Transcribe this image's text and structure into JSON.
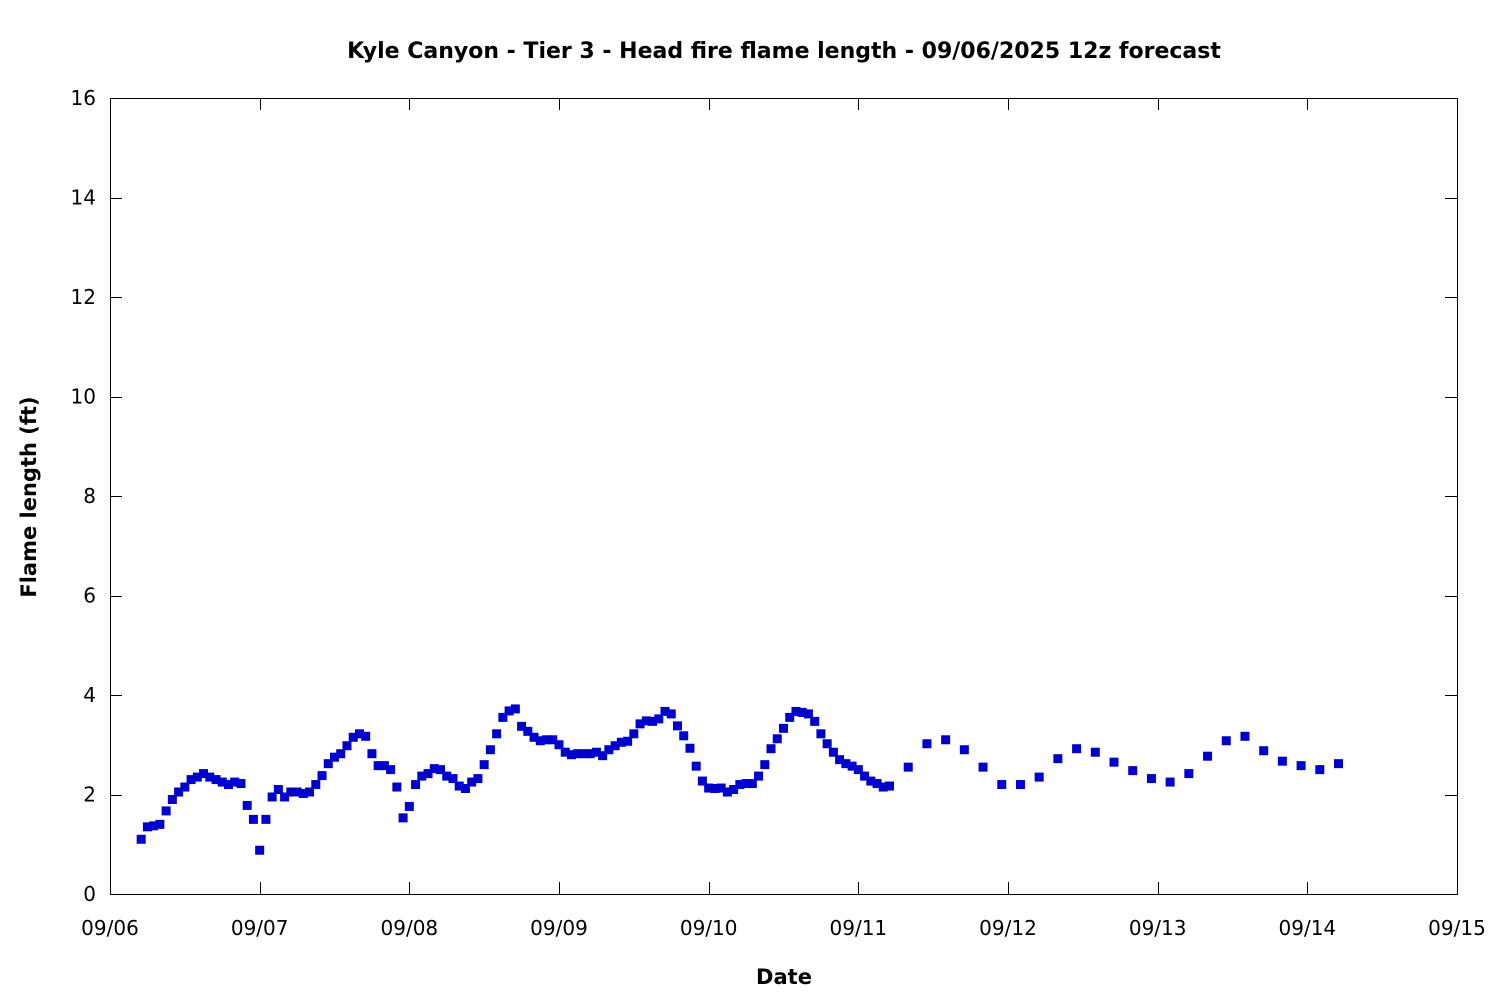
{
  "chart_data": {
    "type": "scatter",
    "title": "Kyle Canyon - Tier 3 - Head fire flame length - 09/06/2025 12z forecast",
    "xlabel": "Date",
    "ylabel": "Flame length (ft)",
    "ylim": [
      0,
      16
    ],
    "y_ticks": [
      0,
      2,
      4,
      6,
      8,
      10,
      12,
      14,
      16
    ],
    "xlim": [
      "09/06",
      "09/15"
    ],
    "x_ticks": [
      "09/06",
      "09/07",
      "09/08",
      "09/09",
      "09/10",
      "09/11",
      "09/12",
      "09/13",
      "09/14",
      "09/15"
    ],
    "grid": false,
    "legend": "none",
    "marker_color": "#0000cc",
    "marker": "square",
    "series": [
      {
        "points": [
          [
            "09/06 05:00",
            1.1
          ],
          [
            "09/06 06:00",
            1.35
          ],
          [
            "09/06 07:00",
            1.37
          ],
          [
            "09/06 08:00",
            1.4
          ],
          [
            "09/06 09:00",
            1.67
          ],
          [
            "09/06 10:00",
            1.9
          ],
          [
            "09/06 11:00",
            2.05
          ],
          [
            "09/06 12:00",
            2.15
          ],
          [
            "09/06 13:00",
            2.3
          ],
          [
            "09/06 14:00",
            2.35
          ],
          [
            "09/06 15:00",
            2.42
          ],
          [
            "09/06 16:00",
            2.35
          ],
          [
            "09/06 17:00",
            2.3
          ],
          [
            "09/06 18:00",
            2.25
          ],
          [
            "09/06 19:00",
            2.2
          ],
          [
            "09/06 20:00",
            2.25
          ],
          [
            "09/06 21:00",
            2.22
          ],
          [
            "09/06 22:00",
            1.78
          ],
          [
            "09/06 23:00",
            1.5
          ],
          [
            "09/07 00:00",
            0.88
          ],
          [
            "09/07 01:00",
            1.5
          ],
          [
            "09/07 02:00",
            1.95
          ],
          [
            "09/07 03:00",
            2.1
          ],
          [
            "09/07 04:00",
            1.95
          ],
          [
            "09/07 05:00",
            2.05
          ],
          [
            "09/07 06:00",
            2.05
          ],
          [
            "09/07 07:00",
            2.02
          ],
          [
            "09/07 08:00",
            2.05
          ],
          [
            "09/07 09:00",
            2.2
          ],
          [
            "09/07 10:00",
            2.38
          ],
          [
            "09/07 11:00",
            2.62
          ],
          [
            "09/07 12:00",
            2.75
          ],
          [
            "09/07 13:00",
            2.82
          ],
          [
            "09/07 14:00",
            2.98
          ],
          [
            "09/07 15:00",
            3.15
          ],
          [
            "09/07 16:00",
            3.22
          ],
          [
            "09/07 17:00",
            3.17
          ],
          [
            "09/07 18:00",
            2.82
          ],
          [
            "09/07 19:00",
            2.58
          ],
          [
            "09/07 20:00",
            2.58
          ],
          [
            "09/07 21:00",
            2.5
          ],
          [
            "09/07 22:00",
            2.15
          ],
          [
            "09/07 23:00",
            1.53
          ],
          [
            "09/08 00:00",
            1.76
          ],
          [
            "09/08 01:00",
            2.2
          ],
          [
            "09/08 02:00",
            2.37
          ],
          [
            "09/08 03:00",
            2.42
          ],
          [
            "09/08 04:00",
            2.52
          ],
          [
            "09/08 05:00",
            2.5
          ],
          [
            "09/08 06:00",
            2.37
          ],
          [
            "09/08 07:00",
            2.32
          ],
          [
            "09/08 08:00",
            2.17
          ],
          [
            "09/08 09:00",
            2.12
          ],
          [
            "09/08 10:00",
            2.25
          ],
          [
            "09/08 11:00",
            2.32
          ],
          [
            "09/08 12:00",
            2.6
          ],
          [
            "09/08 13:00",
            2.9
          ],
          [
            "09/08 14:00",
            3.22
          ],
          [
            "09/08 15:00",
            3.55
          ],
          [
            "09/08 16:00",
            3.68
          ],
          [
            "09/08 17:00",
            3.72
          ],
          [
            "09/08 18:00",
            3.37
          ],
          [
            "09/08 19:00",
            3.27
          ],
          [
            "09/08 20:00",
            3.15
          ],
          [
            "09/08 21:00",
            3.08
          ],
          [
            "09/08 22:00",
            3.1
          ],
          [
            "09/08 23:00",
            3.1
          ],
          [
            "09/09 00:00",
            3.0
          ],
          [
            "09/09 01:00",
            2.85
          ],
          [
            "09/09 02:00",
            2.8
          ],
          [
            "09/09 03:00",
            2.82
          ],
          [
            "09/09 04:00",
            2.82
          ],
          [
            "09/09 05:00",
            2.82
          ],
          [
            "09/09 06:00",
            2.85
          ],
          [
            "09/09 07:00",
            2.78
          ],
          [
            "09/09 08:00",
            2.9
          ],
          [
            "09/09 09:00",
            2.98
          ],
          [
            "09/09 10:00",
            3.05
          ],
          [
            "09/09 11:00",
            3.07
          ],
          [
            "09/09 12:00",
            3.22
          ],
          [
            "09/09 13:00",
            3.42
          ],
          [
            "09/09 14:00",
            3.48
          ],
          [
            "09/09 15:00",
            3.47
          ],
          [
            "09/09 16:00",
            3.52
          ],
          [
            "09/09 17:00",
            3.67
          ],
          [
            "09/09 18:00",
            3.62
          ],
          [
            "09/09 19:00",
            3.38
          ],
          [
            "09/09 20:00",
            3.18
          ],
          [
            "09/09 21:00",
            2.93
          ],
          [
            "09/09 22:00",
            2.57
          ],
          [
            "09/09 23:00",
            2.27
          ],
          [
            "09/10 00:00",
            2.13
          ],
          [
            "09/10 01:00",
            2.12
          ],
          [
            "09/10 02:00",
            2.13
          ],
          [
            "09/10 03:00",
            2.05
          ],
          [
            "09/10 04:00",
            2.1
          ],
          [
            "09/10 05:00",
            2.2
          ],
          [
            "09/10 06:00",
            2.22
          ],
          [
            "09/10 07:00",
            2.22
          ],
          [
            "09/10 08:00",
            2.37
          ],
          [
            "09/10 09:00",
            2.6
          ],
          [
            "09/10 10:00",
            2.92
          ],
          [
            "09/10 11:00",
            3.12
          ],
          [
            "09/10 12:00",
            3.33
          ],
          [
            "09/10 13:00",
            3.55
          ],
          [
            "09/10 14:00",
            3.67
          ],
          [
            "09/10 15:00",
            3.65
          ],
          [
            "09/10 16:00",
            3.62
          ],
          [
            "09/10 17:00",
            3.47
          ],
          [
            "09/10 18:00",
            3.22
          ],
          [
            "09/10 19:00",
            3.02
          ],
          [
            "09/10 20:00",
            2.85
          ],
          [
            "09/10 21:00",
            2.7
          ],
          [
            "09/10 22:00",
            2.62
          ],
          [
            "09/10 23:00",
            2.57
          ],
          [
            "09/11 00:00",
            2.5
          ],
          [
            "09/11 01:00",
            2.37
          ],
          [
            "09/11 02:00",
            2.27
          ],
          [
            "09/11 03:00",
            2.22
          ],
          [
            "09/11 04:00",
            2.15
          ],
          [
            "09/11 05:00",
            2.17
          ],
          [
            "09/11 08:00",
            2.55
          ],
          [
            "09/11 11:00",
            3.02
          ],
          [
            "09/11 14:00",
            3.1
          ],
          [
            "09/11 17:00",
            2.9
          ],
          [
            "09/11 20:00",
            2.55
          ],
          [
            "09/11 23:00",
            2.2
          ],
          [
            "09/12 02:00",
            2.2
          ],
          [
            "09/12 05:00",
            2.35
          ],
          [
            "09/12 08:00",
            2.72
          ],
          [
            "09/12 11:00",
            2.92
          ],
          [
            "09/12 14:00",
            2.85
          ],
          [
            "09/12 17:00",
            2.65
          ],
          [
            "09/12 20:00",
            2.48
          ],
          [
            "09/12 23:00",
            2.32
          ],
          [
            "09/13 02:00",
            2.25
          ],
          [
            "09/13 05:00",
            2.42
          ],
          [
            "09/13 08:00",
            2.77
          ],
          [
            "09/13 11:00",
            3.08
          ],
          [
            "09/13 14:00",
            3.17
          ],
          [
            "09/13 17:00",
            2.88
          ],
          [
            "09/13 20:00",
            2.67
          ],
          [
            "09/13 23:00",
            2.58
          ],
          [
            "09/14 02:00",
            2.5
          ],
          [
            "09/14 05:00",
            2.62
          ]
        ]
      }
    ]
  }
}
